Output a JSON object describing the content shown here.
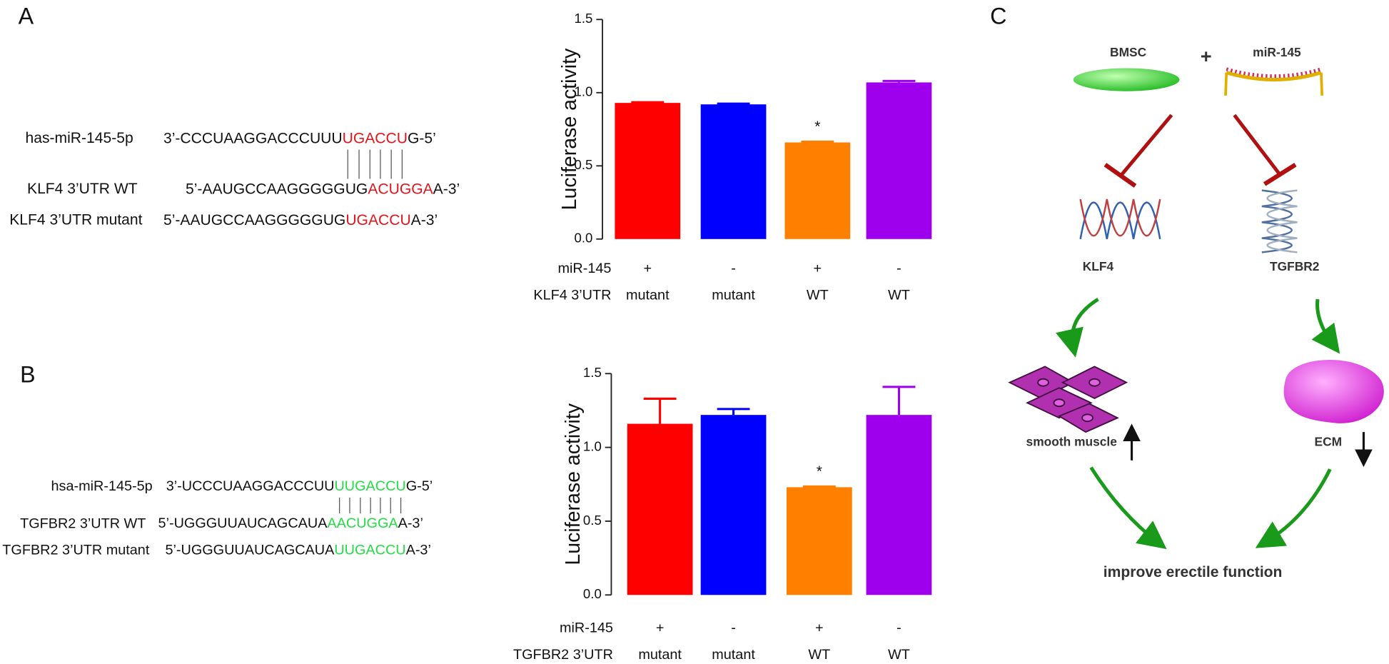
{
  "panel_a": {
    "label": "A",
    "highlight_color": "#e8121a",
    "sequences": [
      {
        "label": "has-miR-145-5p",
        "prefix": "3’-CCCUAAGGACCCUUU",
        "match": "UGACCU",
        "suffix": "G-5’"
      },
      {
        "label": "KLF4 3’UTR  WT",
        "prefix": "5’-AAUGCCAAGGGGGUG",
        "match": "ACUGGA",
        "suffix": "A-3’"
      },
      {
        "label": "KLF4 3’UTR mutant",
        "prefix": "5’-AAUGCCAAGGGGGUG",
        "match": "UGACCU",
        "suffix": "A-3’"
      }
    ]
  },
  "panel_b": {
    "label": "B",
    "highlight_color": "#22dd44",
    "sequences": [
      {
        "label": "hsa-miR-145-5p",
        "prefix": "3’-UCCCUAAGGACCCUU",
        "match": "UUGACCU",
        "suffix": "G-5’"
      },
      {
        "label": "TGFBR2 3’UTR WT",
        "prefix": "5’-UGGGUUAUCAGCAUA",
        "match": "AACUGGA",
        "suffix": "A-3’"
      },
      {
        "label": "TGFBR2 3’UTR mutant",
        "prefix": "5’-UGGGUUAUCAGCAUA",
        "match": "UUGACCU",
        "suffix": "A-3’"
      }
    ]
  },
  "chart_data": [
    {
      "type": "bar",
      "ylabel": "Luciferase activity",
      "ylim": [
        0,
        1.5
      ],
      "yticks": [
        {
          "value": 0,
          "label": "0.0"
        },
        0.5,
        {
          "value": 1,
          "label": "1.0"
        },
        1.5
      ],
      "values": [
        0.93,
        0.92,
        0.66,
        1.07
      ],
      "errors": [
        0.005,
        0.005,
        0.005,
        0.01
      ],
      "colors": [
        "#ff0000",
        "#0000ff",
        "#ff8000",
        "#9e00ee"
      ],
      "value_annotations": [
        null,
        null,
        "*",
        null
      ],
      "category_rows": [
        {
          "label": "miR-145",
          "values": [
            "+",
            "-",
            "+",
            "-"
          ]
        },
        {
          "label": "KLF4 3’UTR",
          "values": [
            "mutant",
            "mutant",
            "WT",
            "WT"
          ]
        }
      ]
    },
    {
      "type": "bar",
      "ylabel": "Luciferase activity",
      "ylim": [
        0,
        1.5
      ],
      "yticks": [
        {
          "value": 0,
          "label": "0.0"
        },
        0.5,
        {
          "value": 1,
          "label": "1.0"
        },
        1.5
      ],
      "values": [
        1.16,
        1.22,
        0.73,
        1.22
      ],
      "errors": [
        0.17,
        0.04,
        0.005,
        0.19
      ],
      "colors": [
        "#ff0000",
        "#0000ff",
        "#ff8000",
        "#9e00ee"
      ],
      "value_annotations": [
        null,
        null,
        "*",
        null
      ],
      "category_rows": [
        {
          "label": "miR-145",
          "values": [
            "+",
            "-",
            "+",
            "-"
          ]
        },
        {
          "label": "TGFBR2 3’UTR",
          "values": [
            "mutant",
            "mutant",
            "WT",
            "WT"
          ]
        }
      ]
    }
  ],
  "panel_c": {
    "label": "C",
    "bmsc": "BMSC",
    "plus": "+",
    "mirna": "miR-145",
    "klf4": "KLF4",
    "tgfbr2": "TGFBR2",
    "smooth_muscle": "smooth muscle",
    "ecm": "ECM",
    "outcome": "improve erectile function"
  }
}
